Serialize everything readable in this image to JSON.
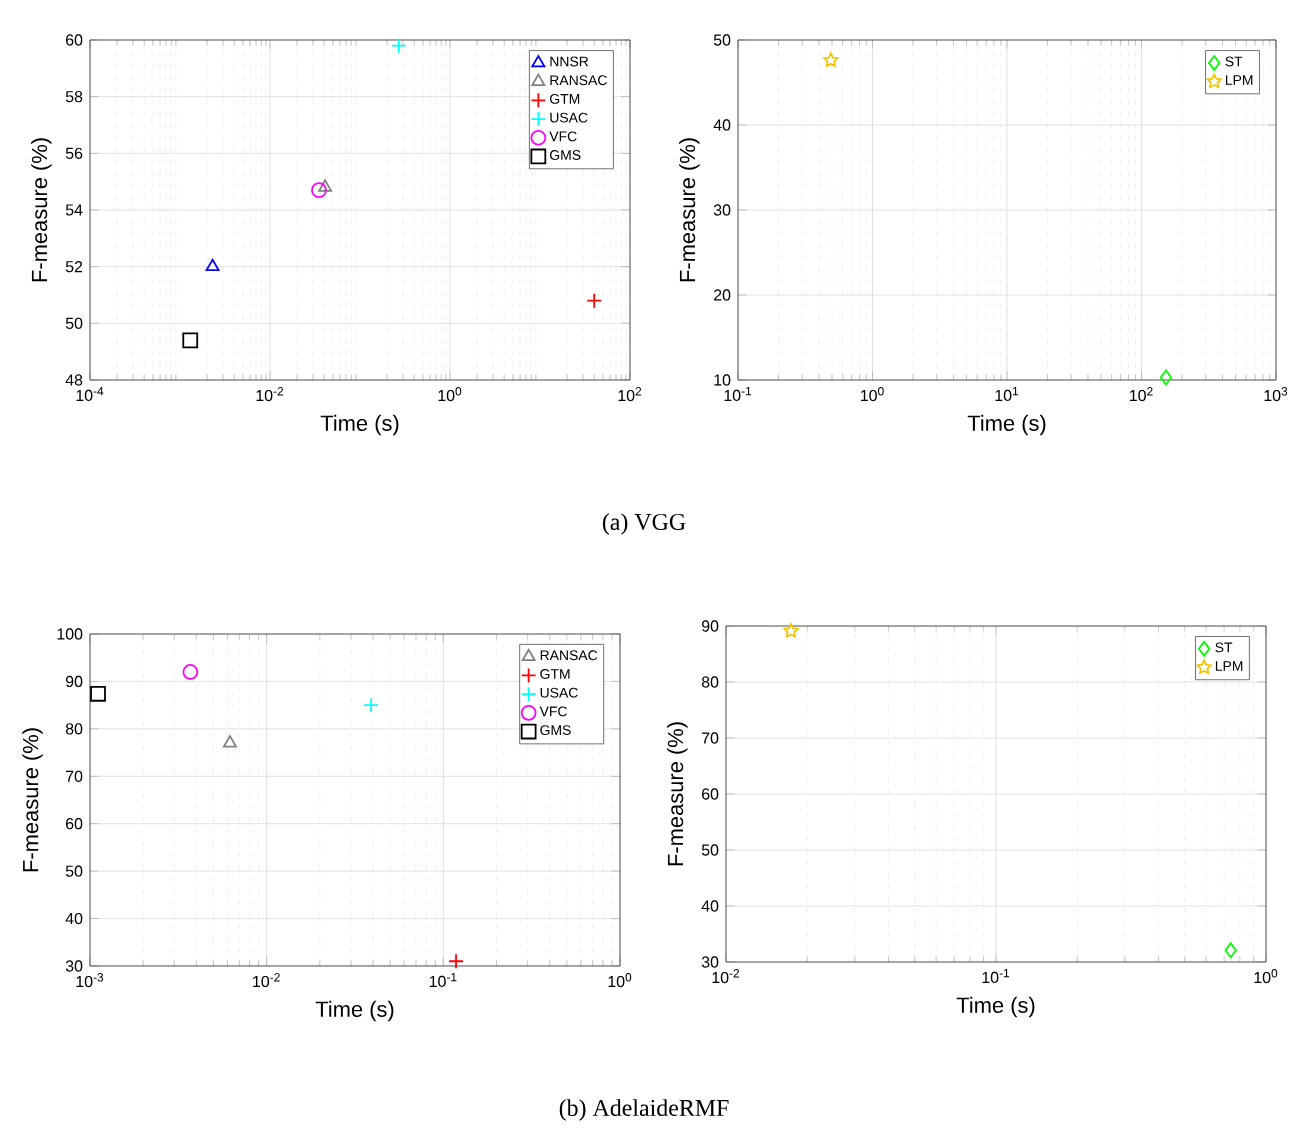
{
  "chart_data": [
    {
      "type": "scatter",
      "xlabel": "Time (s)",
      "ylabel": "F-measure (%)",
      "log": "x",
      "grid": true,
      "legend": "top right",
      "xlim": [
        0.0001,
        100
      ],
      "ylim": [
        48,
        60
      ],
      "xticks": [
        {
          "value": 0.0001,
          "label": "10$^{-4}$"
        },
        {
          "value": 0.01,
          "label": "10$^{-2}$"
        },
        {
          "value": 1,
          "label": "10$^{0}$"
        },
        {
          "value": 100,
          "label": "10$^{2}$"
        }
      ],
      "yticks": [
        48,
        50,
        52,
        54,
        56,
        58,
        60
      ],
      "annotations": [
        "(a)  VGG"
      ],
      "series": [
        {
          "name": "NNSR",
          "color": "#0000ff",
          "marker": "triangle",
          "x": [
            0.0023
          ],
          "values": [
            52.0
          ]
        },
        {
          "name": "RANSAC",
          "color": "#808080",
          "marker": "triangle",
          "x": [
            0.041
          ],
          "values": [
            54.8
          ]
        },
        {
          "name": "GTM",
          "color": "#ff0000",
          "marker": "cross",
          "x": [
            40
          ],
          "values": [
            50.8
          ]
        },
        {
          "name": "USAC",
          "color": "#00ffff",
          "marker": "cross",
          "x": [
            0.27
          ],
          "values": [
            59.8
          ]
        },
        {
          "name": "VFC",
          "color": "#ff00ff",
          "marker": "circle",
          "x": [
            0.035
          ],
          "values": [
            54.7
          ]
        },
        {
          "name": "GMS",
          "color": "#000000",
          "marker": "square",
          "x": [
            0.0013
          ],
          "values": [
            49.4
          ]
        }
      ]
    },
    {
      "type": "scatter",
      "xlabel": "Time (s)",
      "ylabel": "F-measure (%)",
      "log": "x",
      "grid": true,
      "legend": "top right",
      "xlim": [
        0.1,
        1000
      ],
      "ylim": [
        10,
        50
      ],
      "xticks": [
        {
          "value": 0.1,
          "label": "10$^{-1}$"
        },
        {
          "value": 1,
          "label": "10$^{0}$"
        },
        {
          "value": 10,
          "label": "10$^{1}$"
        },
        {
          "value": 100,
          "label": "10$^{2}$"
        },
        {
          "value": 1000,
          "label": "10$^{3}$"
        }
      ],
      "yticks": [
        10,
        20,
        30,
        40,
        50
      ],
      "series": [
        {
          "name": "ST",
          "color": "#00ff00",
          "marker": "diamond",
          "x": [
            152
          ],
          "values": [
            10.3
          ]
        },
        {
          "name": "LPM",
          "color": "#f5c400",
          "marker": "star",
          "x": [
            0.49
          ],
          "values": [
            47.6
          ]
        }
      ]
    },
    {
      "type": "scatter",
      "xlabel": "Time (s)",
      "ylabel": "F-measure (%)",
      "log": "x",
      "grid": true,
      "legend": "top right",
      "xlim": [
        0.001,
        1
      ],
      "ylim": [
        30,
        100
      ],
      "xticks": [
        {
          "value": 0.001,
          "label": "10$^{-3}$"
        },
        {
          "value": 0.01,
          "label": "10$^{-2}$"
        },
        {
          "value": 0.1,
          "label": "10$^{-1}$"
        },
        {
          "value": 1,
          "label": "10$^{0}$"
        }
      ],
      "yticks": [
        30,
        40,
        50,
        60,
        70,
        80,
        90,
        100
      ],
      "annotations": [
        "(b)  AdelaideRMF"
      ],
      "series": [
        {
          "name": "RANSAC",
          "color": "#808080",
          "marker": "triangle",
          "x": [
            0.0062
          ],
          "values": [
            77
          ]
        },
        {
          "name": "GTM",
          "color": "#ff0000",
          "marker": "cross",
          "x": [
            0.118
          ],
          "values": [
            31
          ]
        },
        {
          "name": "USAC",
          "color": "#00ffff",
          "marker": "cross",
          "x": [
            0.039
          ],
          "values": [
            85
          ]
        },
        {
          "name": "VFC",
          "color": "#ff00ff",
          "marker": "circle",
          "x": [
            0.0037
          ],
          "values": [
            92
          ]
        },
        {
          "name": "GMS",
          "color": "#000000",
          "marker": "square",
          "x": [
            0.00111
          ],
          "values": [
            87.4
          ]
        }
      ]
    },
    {
      "type": "scatter",
      "xlabel": "Time (s)",
      "ylabel": "F-measure (%)",
      "log": "x",
      "grid": true,
      "legend": "top right",
      "xlim": [
        0.01,
        1
      ],
      "ylim": [
        30,
        90
      ],
      "xticks": [
        {
          "value": 0.01,
          "label": "10$^{-2}$"
        },
        {
          "value": 0.1,
          "label": "10$^{-1}$"
        },
        {
          "value": 1,
          "label": "10$^{0}$"
        }
      ],
      "yticks": [
        30,
        40,
        50,
        60,
        70,
        80,
        90
      ],
      "series": [
        {
          "name": "ST",
          "color": "#00ff00",
          "marker": "diamond",
          "x": [
            0.74
          ],
          "values": [
            32.1
          ]
        },
        {
          "name": "LPM",
          "color": "#f5c400",
          "marker": "star",
          "x": [
            0.0174
          ],
          "values": [
            89.1
          ]
        }
      ]
    }
  ]
}
